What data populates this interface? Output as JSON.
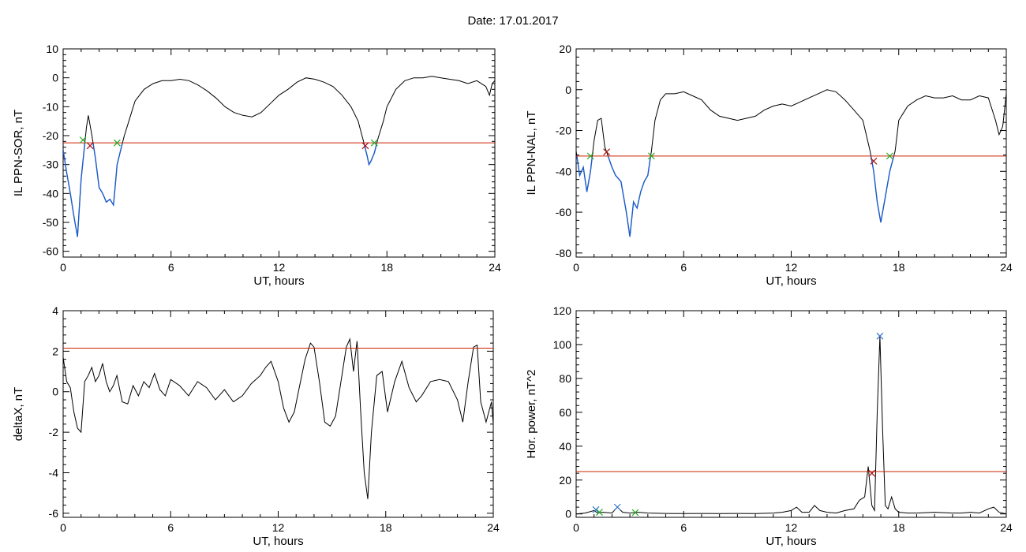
{
  "header": {
    "title": "Date:  17.01.2017"
  },
  "colors": {
    "trace": "#000000",
    "threshold": "#cc2200",
    "below": "#1a5ccc",
    "mark_green": "#22aa22",
    "mark_red": "#aa1111",
    "mark_blue": "#3377cc"
  },
  "chart_data": [
    {
      "id": "ppn-sor",
      "type": "line",
      "xlabel": "UT, hours",
      "ylabel": "IL PPN-SOR, nT",
      "xlim": [
        0,
        24
      ],
      "ylim": [
        -62,
        10
      ],
      "xticks": [
        0,
        6,
        12,
        18,
        24
      ],
      "yticks": [
        -60,
        -50,
        -40,
        -30,
        -20,
        -10,
        0,
        10
      ],
      "threshold": -22.5,
      "x": [
        0,
        0.2,
        0.4,
        0.6,
        0.8,
        1.0,
        1.2,
        1.3,
        1.4,
        1.6,
        1.8,
        2.0,
        2.2,
        2.4,
        2.6,
        2.8,
        3.0,
        3.2,
        3.4,
        3.6,
        3.8,
        4.0,
        4.5,
        5.0,
        5.5,
        6.0,
        6.5,
        7.0,
        7.5,
        8.0,
        8.5,
        9.0,
        9.5,
        10.0,
        10.5,
        11.0,
        11.5,
        12.0,
        12.5,
        13.0,
        13.5,
        14.0,
        14.5,
        15.0,
        15.5,
        16.0,
        16.4,
        16.7,
        16.9,
        17.0,
        17.1,
        17.3,
        17.5,
        17.8,
        18.0,
        18.5,
        19.0,
        19.5,
        20.0,
        20.5,
        21.0,
        21.5,
        22.0,
        22.5,
        23.0,
        23.5,
        23.7,
        23.85,
        24.0
      ],
      "y": [
        -25,
        -33,
        -40,
        -48,
        -55,
        -35,
        -23,
        -17,
        -13,
        -20,
        -28,
        -38,
        -40,
        -43,
        -42,
        -44,
        -30,
        -25,
        -20,
        -16,
        -12,
        -8,
        -4,
        -2,
        -1,
        -1,
        -0.5,
        -1,
        -2.5,
        -4.5,
        -7,
        -10,
        -12,
        -13,
        -13.5,
        -12,
        -9,
        -6,
        -4,
        -1.5,
        0,
        -0.5,
        -1.5,
        -3,
        -6,
        -10,
        -15,
        -22,
        -27,
        -30,
        -29,
        -26,
        -21,
        -15,
        -10,
        -4,
        -1,
        0,
        0,
        0.5,
        0,
        -0.5,
        -1,
        -2,
        -1,
        -3,
        -6,
        -2,
        -1
      ],
      "marks": [
        {
          "x": 1.1,
          "y": -21.5,
          "color": "mark_green"
        },
        {
          "x": 1.5,
          "y": -23.5,
          "color": "mark_red"
        },
        {
          "x": 3.0,
          "y": -22.5,
          "color": "mark_green"
        },
        {
          "x": 16.8,
          "y": -23.5,
          "color": "mark_red"
        },
        {
          "x": 17.3,
          "y": -22.5,
          "color": "mark_green"
        }
      ]
    },
    {
      "id": "ppn-nal",
      "type": "line",
      "xlabel": "UT, hours",
      "ylabel": "IL PPN-NAL, nT",
      "xlim": [
        0,
        24
      ],
      "ylim": [
        -82,
        20
      ],
      "xticks": [
        0,
        6,
        12,
        18,
        24
      ],
      "yticks": [
        -80,
        -60,
        -40,
        -20,
        0,
        20
      ],
      "threshold": -32.5,
      "x": [
        0,
        0.2,
        0.4,
        0.6,
        0.8,
        1.0,
        1.2,
        1.4,
        1.6,
        1.8,
        2.0,
        2.2,
        2.5,
        2.8,
        3.0,
        3.2,
        3.4,
        3.6,
        3.8,
        4.0,
        4.2,
        4.4,
        4.7,
        5.0,
        5.5,
        6.0,
        6.5,
        7.0,
        7.5,
        8.0,
        8.5,
        9.0,
        9.5,
        10.0,
        10.5,
        11.0,
        11.5,
        12.0,
        12.5,
        13.0,
        13.5,
        14.0,
        14.5,
        15.0,
        15.5,
        16.0,
        16.4,
        16.6,
        16.8,
        17.0,
        17.2,
        17.5,
        17.8,
        18.0,
        18.5,
        19.0,
        19.5,
        20.0,
        20.5,
        21.0,
        21.5,
        22.0,
        22.5,
        23.0,
        23.4,
        23.6,
        23.8,
        24.0
      ],
      "y": [
        -30,
        -42,
        -38,
        -50,
        -40,
        -25,
        -15,
        -14,
        -28,
        -33,
        -38,
        -42,
        -45,
        -60,
        -72,
        -55,
        -58,
        -50,
        -45,
        -42,
        -30,
        -15,
        -5,
        -2,
        -2,
        -1,
        -3,
        -5,
        -10,
        -13,
        -14,
        -15,
        -14,
        -13,
        -10,
        -8,
        -7,
        -8,
        -6,
        -4,
        -2,
        0,
        -1,
        -5,
        -10,
        -15,
        -30,
        -40,
        -55,
        -65,
        -55,
        -40,
        -30,
        -15,
        -8,
        -5,
        -3,
        -4,
        -4,
        -3,
        -5,
        -5,
        -3,
        -4,
        -15,
        -22,
        -18,
        -2
      ],
      "marks": [
        {
          "x": 0.8,
          "y": -32.5,
          "color": "mark_green"
        },
        {
          "x": 1.7,
          "y": -30.5,
          "color": "mark_red"
        },
        {
          "x": 4.2,
          "y": -32.5,
          "color": "mark_green"
        },
        {
          "x": 16.6,
          "y": -35,
          "color": "mark_red"
        },
        {
          "x": 17.5,
          "y": -32.5,
          "color": "mark_green"
        }
      ]
    },
    {
      "id": "deltax",
      "type": "line",
      "xlabel": "UT, hours",
      "ylabel": "deltaX, nT",
      "xlim": [
        0,
        24
      ],
      "ylim": [
        -6.2,
        4
      ],
      "xticks": [
        0,
        6,
        12,
        18,
        24
      ],
      "yticks": [
        -6,
        -4,
        -2,
        0,
        2,
        4
      ],
      "threshold": 2.15,
      "x": [
        0,
        0.2,
        0.4,
        0.6,
        0.8,
        1.0,
        1.2,
        1.4,
        1.6,
        1.8,
        2.0,
        2.2,
        2.4,
        2.6,
        2.8,
        3.0,
        3.3,
        3.6,
        3.9,
        4.2,
        4.5,
        4.8,
        5.1,
        5.4,
        5.7,
        6.0,
        6.5,
        7.0,
        7.5,
        8.0,
        8.5,
        9.0,
        9.5,
        10.0,
        10.5,
        11.0,
        11.3,
        11.6,
        12.0,
        12.3,
        12.6,
        12.9,
        13.2,
        13.5,
        13.8,
        14.0,
        14.3,
        14.6,
        14.9,
        15.2,
        15.5,
        15.8,
        16.0,
        16.2,
        16.4,
        16.6,
        16.8,
        17.0,
        17.2,
        17.5,
        17.8,
        18.1,
        18.5,
        18.9,
        19.3,
        19.7,
        20.0,
        20.5,
        21.0,
        21.5,
        22.0,
        22.3,
        22.6,
        22.9,
        23.1,
        23.3,
        23.6,
        23.9,
        24.0
      ],
      "y": [
        1.7,
        0.5,
        0.2,
        -1.0,
        -1.8,
        -2.0,
        0.5,
        0.8,
        1.2,
        0.5,
        0.8,
        1.4,
        0.5,
        0.0,
        0.3,
        0.8,
        -0.5,
        -0.6,
        0.3,
        -0.2,
        0.5,
        0.2,
        0.9,
        0.1,
        -0.2,
        0.6,
        0.3,
        -0.2,
        0.5,
        0.2,
        -0.4,
        0.1,
        -0.5,
        -0.2,
        0.4,
        0.8,
        1.2,
        1.5,
        0.5,
        -0.8,
        -1.5,
        -1.0,
        0.3,
        1.6,
        2.4,
        2.2,
        0.5,
        -1.5,
        -1.7,
        -1.2,
        0.5,
        2.2,
        2.6,
        1.0,
        2.5,
        -1.0,
        -4.0,
        -5.3,
        -2.0,
        0.8,
        1.0,
        -1.0,
        0.5,
        1.5,
        0.2,
        -0.5,
        -0.2,
        0.5,
        0.6,
        0.5,
        -0.4,
        -1.5,
        0.5,
        2.2,
        2.3,
        -0.5,
        -1.5,
        -0.5,
        -1.6
      ],
      "marks": []
    },
    {
      "id": "hor-power",
      "type": "line",
      "xlabel": "UT, hours",
      "ylabel": "Hor. power, nT^2",
      "xlim": [
        0,
        24
      ],
      "ylim": [
        -2,
        120
      ],
      "xticks": [
        0,
        6,
        12,
        18,
        24
      ],
      "yticks": [
        0,
        20,
        40,
        60,
        80,
        100,
        120
      ],
      "threshold": 25,
      "x": [
        0,
        0.5,
        1.0,
        1.2,
        1.5,
        2.0,
        2.3,
        2.6,
        3.0,
        3.5,
        4.0,
        5.0,
        6.0,
        7.0,
        8.0,
        9.0,
        10.0,
        11.0,
        11.5,
        12.0,
        12.3,
        12.6,
        13.0,
        13.3,
        13.6,
        14.0,
        14.5,
        15.0,
        15.5,
        15.8,
        16.1,
        16.3,
        16.5,
        16.65,
        16.8,
        16.95,
        17.1,
        17.25,
        17.4,
        17.6,
        17.8,
        18.0,
        18.5,
        19.0,
        20.0,
        21.0,
        21.5,
        22.0,
        22.5,
        23.0,
        23.3,
        23.6,
        24.0
      ],
      "y": [
        0,
        0.5,
        2,
        0.5,
        1,
        0.5,
        4,
        1,
        0.5,
        1,
        0.5,
        0.3,
        0.2,
        0.3,
        0.2,
        0.3,
        0.2,
        0.5,
        1,
        2,
        4,
        1,
        1,
        5,
        2,
        1,
        0.5,
        2,
        3,
        8,
        10,
        28,
        5,
        2,
        60,
        105,
        50,
        5,
        3,
        10,
        3,
        1,
        0.5,
        0.5,
        1,
        0.5,
        0.5,
        1,
        0.5,
        3,
        4,
        1,
        0
      ],
      "marks": [
        {
          "x": 1.1,
          "y": 2.5,
          "color": "mark_blue"
        },
        {
          "x": 1.3,
          "y": 1,
          "color": "mark_green"
        },
        {
          "x": 2.3,
          "y": 4,
          "color": "mark_blue"
        },
        {
          "x": 3.3,
          "y": 0.8,
          "color": "mark_green"
        },
        {
          "x": 16.5,
          "y": 24,
          "color": "mark_red"
        },
        {
          "x": 16.95,
          "y": 105,
          "color": "mark_blue"
        }
      ]
    }
  ]
}
